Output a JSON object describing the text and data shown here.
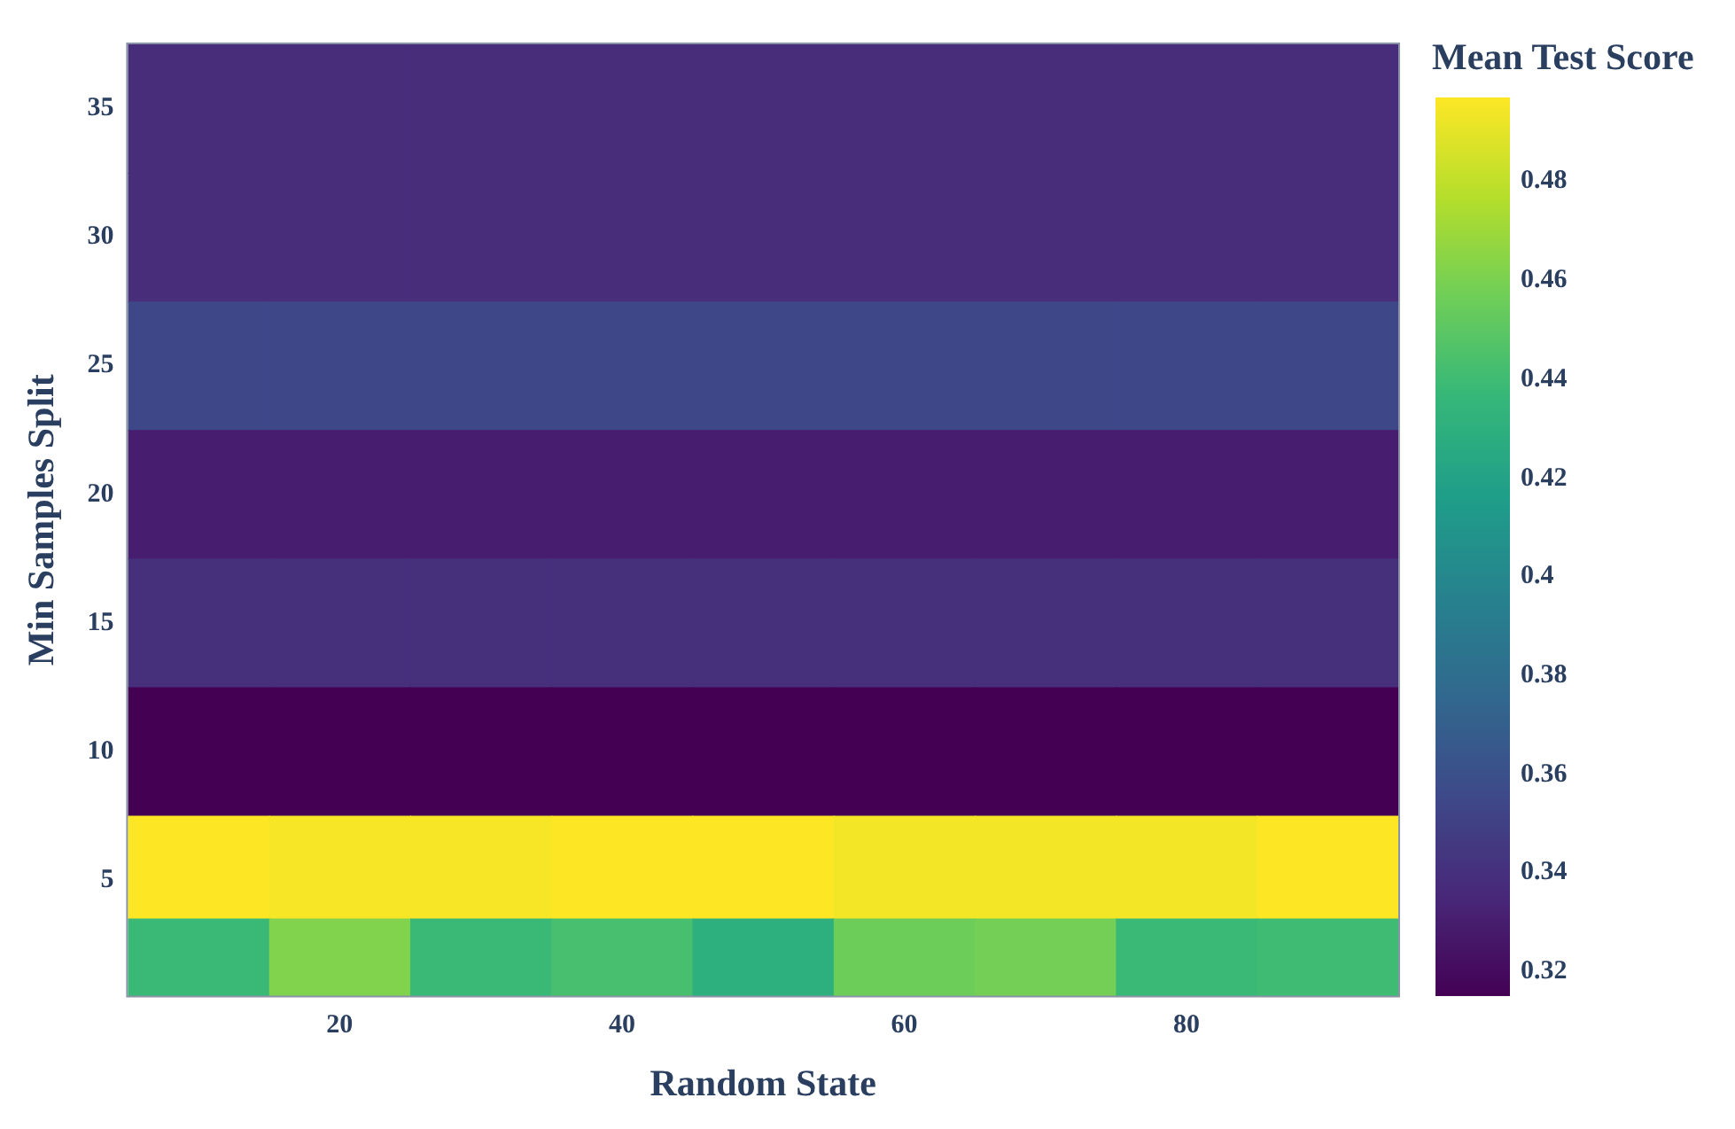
{
  "chart_data": {
    "type": "heatmap",
    "xlabel": "Random State",
    "ylabel": "Min Samples Split",
    "clabel": "Mean Test Score",
    "x": [
      10,
      20,
      30,
      40,
      50,
      60,
      70,
      80,
      90
    ],
    "y": [
      35,
      30,
      25,
      20,
      15,
      10,
      5,
      2
    ],
    "cells": [
      [
        0.338,
        0.338,
        0.338,
        0.338,
        0.338,
        0.338,
        0.338,
        0.338,
        0.338
      ],
      [
        0.338,
        0.338,
        0.338,
        0.338,
        0.338,
        0.338,
        0.338,
        0.338,
        0.338
      ],
      [
        0.355,
        0.355,
        0.355,
        0.355,
        0.355,
        0.355,
        0.355,
        0.355,
        0.355
      ],
      [
        0.33,
        0.33,
        0.33,
        0.33,
        0.33,
        0.33,
        0.33,
        0.33,
        0.33
      ],
      [
        0.34,
        0.34,
        0.34,
        0.34,
        0.34,
        0.34,
        0.34,
        0.34,
        0.34
      ],
      [
        0.315,
        0.315,
        0.315,
        0.315,
        0.315,
        0.315,
        0.315,
        0.315,
        0.315
      ],
      [
        0.497,
        0.495,
        0.495,
        0.497,
        0.497,
        0.494,
        0.494,
        0.494,
        0.497
      ],
      [
        0.438,
        0.462,
        0.438,
        0.443,
        0.43,
        0.456,
        0.458,
        0.438,
        0.44
      ]
    ],
    "xlim": [
      5,
      95
    ],
    "xticks": [
      20,
      40,
      60,
      80
    ],
    "ylim": [
      0.5,
      37.5
    ],
    "yticks": [
      5,
      10,
      15,
      20,
      25,
      30,
      35
    ],
    "clim": [
      0.315,
      0.497
    ],
    "cticks": [
      0.32,
      0.34,
      0.36,
      0.38,
      0.4,
      0.42,
      0.44,
      0.46,
      0.48
    ]
  }
}
